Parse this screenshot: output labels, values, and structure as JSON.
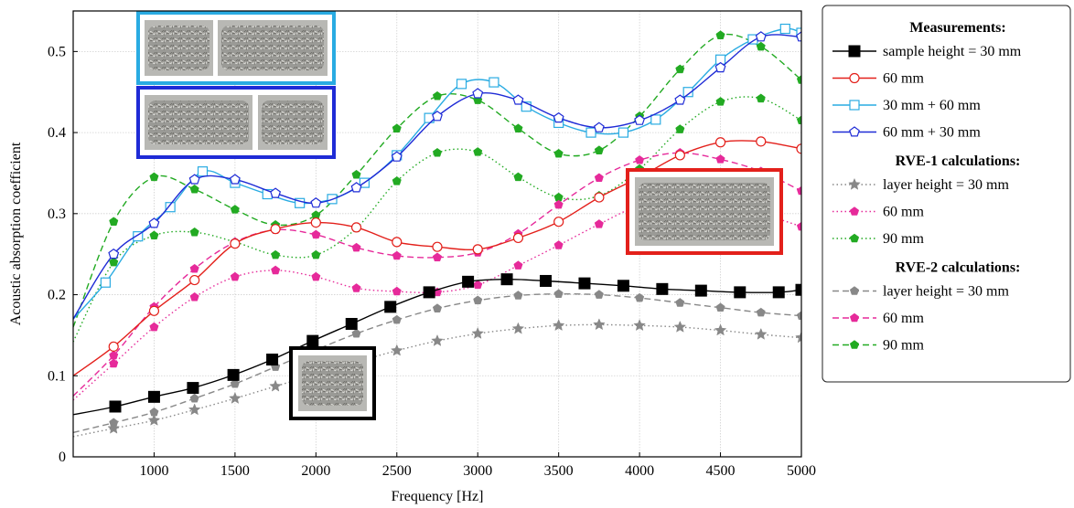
{
  "chart_data": {
    "type": "line",
    "xlabel": "Frequency [Hz]",
    "ylabel": "Acoustic absorption coefficient",
    "xlim": [
      500,
      5000
    ],
    "ylim": [
      0,
      0.55
    ],
    "xticks": [
      "1000",
      "1500",
      "2000",
      "2500",
      "3000",
      "3500",
      "4000",
      "4500",
      "5000"
    ],
    "yticks": [
      "0",
      "0.1",
      "0.2",
      "0.3",
      "0.4",
      "0.5"
    ],
    "grid": true,
    "legend_position": "right-outside",
    "legend_groups": [
      {
        "header": "Measurements:",
        "series": [
          0,
          1,
          2,
          3
        ]
      },
      {
        "header": "RVE-1 calculations:",
        "series": [
          4,
          5,
          6
        ]
      },
      {
        "header": "RVE-2 calculations:",
        "series": [
          7,
          8,
          9
        ]
      }
    ],
    "insets": [
      {
        "name": "sample-photo-30mm-plus-60mm",
        "frame_color": "#29abe2"
      },
      {
        "name": "sample-photo-60mm-plus-30mm",
        "frame_color": "#1f2bd6"
      },
      {
        "name": "sample-photo-60mm",
        "frame_color": "#e3201b"
      },
      {
        "name": "sample-photo-30mm",
        "frame_color": "#000000"
      }
    ],
    "series": [
      {
        "name": "sample height = 30 mm",
        "color": "#000000",
        "dash": "solid",
        "marker": "square-filled",
        "x": [
          500,
          760,
          1000,
          1240,
          1490,
          1730,
          1980,
          2220,
          2460,
          2700,
          2940,
          3180,
          3420,
          3660,
          3900,
          4140,
          4380,
          4620,
          4860,
          5000
        ],
        "y": [
          0.052,
          0.062,
          0.074,
          0.085,
          0.101,
          0.12,
          0.143,
          0.164,
          0.185,
          0.203,
          0.216,
          0.219,
          0.217,
          0.214,
          0.211,
          0.207,
          0.205,
          0.203,
          0.203,
          0.206
        ]
      },
      {
        "name": "60 mm",
        "color": "#e3201b",
        "dash": "solid",
        "marker": "circle-open",
        "x": [
          500,
          750,
          1000,
          1250,
          1500,
          1750,
          2000,
          2250,
          2500,
          2750,
          3000,
          3250,
          3500,
          3750,
          4000,
          4250,
          4500,
          4750,
          5000
        ],
        "y": [
          0.1,
          0.136,
          0.18,
          0.218,
          0.263,
          0.281,
          0.289,
          0.283,
          0.265,
          0.259,
          0.256,
          0.27,
          0.29,
          0.32,
          0.345,
          0.372,
          0.388,
          0.389,
          0.38
        ]
      },
      {
        "name": "30 mm + 60 mm",
        "color": "#29abe2",
        "dash": "solid",
        "marker": "square-open",
        "x": [
          500,
          700,
          900,
          1100,
          1300,
          1500,
          1700,
          1900,
          2100,
          2300,
          2500,
          2700,
          2900,
          3100,
          3300,
          3500,
          3700,
          3900,
          4100,
          4300,
          4500,
          4700,
          4900,
          5000
        ],
        "y": [
          0.17,
          0.215,
          0.272,
          0.308,
          0.352,
          0.338,
          0.324,
          0.313,
          0.318,
          0.338,
          0.372,
          0.418,
          0.46,
          0.462,
          0.432,
          0.412,
          0.4,
          0.4,
          0.416,
          0.45,
          0.49,
          0.515,
          0.528,
          0.523
        ]
      },
      {
        "name": "60 mm + 30 mm",
        "color": "#1f2bd6",
        "dash": "solid",
        "marker": "pentagon-open",
        "x": [
          500,
          750,
          1000,
          1250,
          1500,
          1750,
          2000,
          2250,
          2500,
          2750,
          3000,
          3250,
          3500,
          3750,
          4000,
          4250,
          4500,
          4750,
          5000
        ],
        "y": [
          0.17,
          0.25,
          0.288,
          0.342,
          0.342,
          0.325,
          0.313,
          0.332,
          0.37,
          0.42,
          0.448,
          0.44,
          0.418,
          0.406,
          0.415,
          0.44,
          0.48,
          0.518,
          0.518
        ]
      },
      {
        "name": "layer height = 30 mm",
        "color": "#888888",
        "dash": "dotted",
        "marker": "star",
        "x": [
          500,
          750,
          1000,
          1250,
          1500,
          1750,
          2000,
          2250,
          2500,
          2750,
          3000,
          3250,
          3500,
          3750,
          4000,
          4250,
          4500,
          4750,
          5000
        ],
        "y": [
          0.025,
          0.035,
          0.045,
          0.058,
          0.072,
          0.087,
          0.102,
          0.117,
          0.131,
          0.143,
          0.152,
          0.158,
          0.162,
          0.163,
          0.162,
          0.16,
          0.156,
          0.151,
          0.147
        ]
      },
      {
        "name": "60 mm",
        "color": "#e62a9a",
        "dash": "dotted",
        "marker": "pentagon-filled",
        "x": [
          500,
          750,
          1000,
          1250,
          1500,
          1750,
          2000,
          2250,
          2500,
          2750,
          3000,
          3250,
          3500,
          3750,
          4000,
          4250,
          4500,
          4750,
          5000
        ],
        "y": [
          0.07,
          0.115,
          0.16,
          0.197,
          0.222,
          0.23,
          0.222,
          0.208,
          0.204,
          0.203,
          0.212,
          0.236,
          0.261,
          0.287,
          0.31,
          0.318,
          0.311,
          0.3,
          0.284
        ]
      },
      {
        "name": "90 mm",
        "color": "#22aa22",
        "dash": "dotted",
        "marker": "pentagon-filled",
        "x": [
          500,
          750,
          1000,
          1250,
          1500,
          1750,
          2000,
          2250,
          2500,
          2750,
          3000,
          3250,
          3500,
          3750,
          4000,
          4250,
          4500,
          4750,
          5000
        ],
        "y": [
          0.142,
          0.24,
          0.273,
          0.277,
          0.265,
          0.249,
          0.249,
          0.282,
          0.34,
          0.375,
          0.376,
          0.345,
          0.32,
          0.322,
          0.355,
          0.404,
          0.438,
          0.442,
          0.415
        ]
      },
      {
        "name": "layer height = 30 mm",
        "color": "#888888",
        "dash": "dashed",
        "marker": "pentagon-filled",
        "x": [
          500,
          750,
          1000,
          1250,
          1500,
          1750,
          2000,
          2250,
          2500,
          2750,
          3000,
          3250,
          3500,
          3750,
          4000,
          4250,
          4500,
          4750,
          5000
        ],
        "y": [
          0.03,
          0.042,
          0.055,
          0.072,
          0.09,
          0.111,
          0.132,
          0.152,
          0.169,
          0.183,
          0.193,
          0.199,
          0.201,
          0.2,
          0.196,
          0.19,
          0.184,
          0.178,
          0.174
        ]
      },
      {
        "name": "60 mm",
        "color": "#e62a9a",
        "dash": "dashed",
        "marker": "pentagon-filled",
        "x": [
          500,
          750,
          1000,
          1250,
          1500,
          1750,
          2000,
          2250,
          2500,
          2750,
          3000,
          3250,
          3500,
          3750,
          4000,
          4250,
          4500,
          4750,
          5000
        ],
        "y": [
          0.075,
          0.125,
          0.185,
          0.232,
          0.265,
          0.28,
          0.274,
          0.258,
          0.248,
          0.246,
          0.252,
          0.275,
          0.311,
          0.344,
          0.366,
          0.375,
          0.367,
          0.352,
          0.328
        ]
      },
      {
        "name": "90 mm",
        "color": "#22aa22",
        "dash": "dashed",
        "marker": "pentagon-filled",
        "x": [
          500,
          750,
          1000,
          1250,
          1500,
          1750,
          2000,
          2250,
          2500,
          2750,
          3000,
          3250,
          3500,
          3750,
          4000,
          4250,
          4500,
          4750,
          5000
        ],
        "y": [
          0.16,
          0.29,
          0.345,
          0.33,
          0.305,
          0.286,
          0.298,
          0.348,
          0.405,
          0.445,
          0.44,
          0.405,
          0.374,
          0.378,
          0.42,
          0.478,
          0.52,
          0.506,
          0.465
        ]
      }
    ]
  }
}
